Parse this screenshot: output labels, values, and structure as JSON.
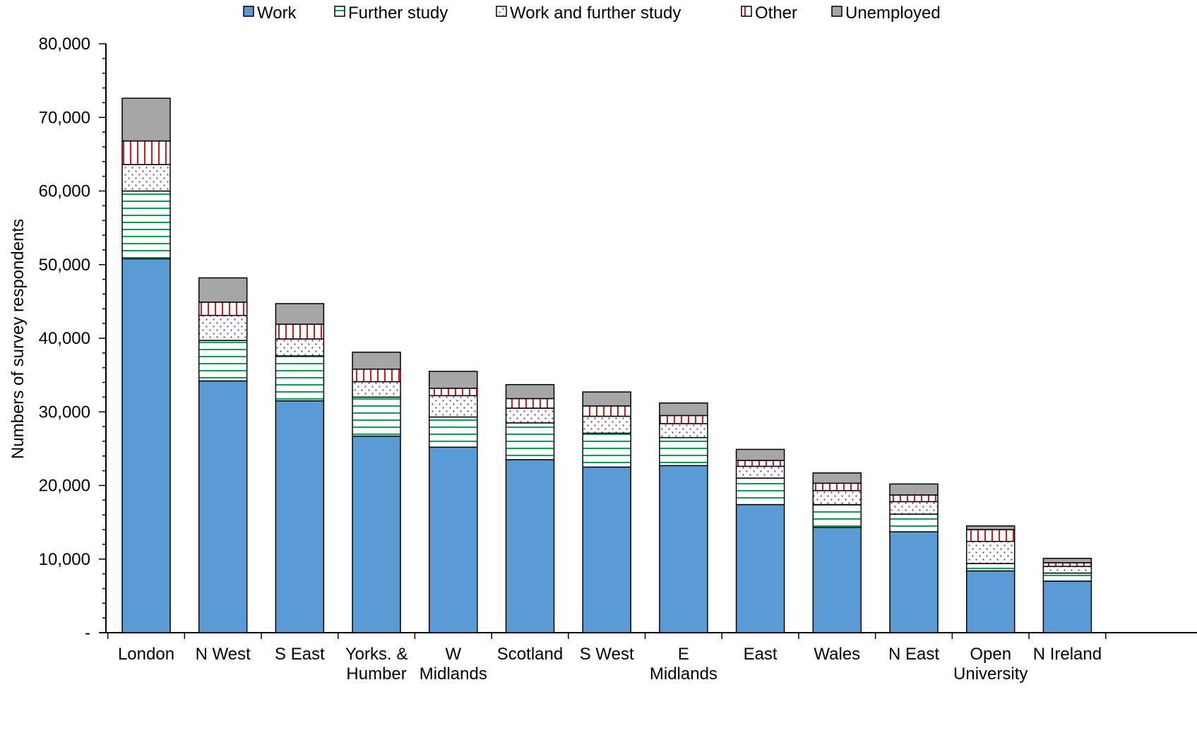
{
  "chart_data": {
    "type": "bar",
    "stacked": true,
    "title": "",
    "xlabel": "",
    "ylabel": "Numbers of survey respondents",
    "ylim": [
      0,
      80000
    ],
    "yticks": [
      0,
      10000,
      20000,
      30000,
      40000,
      50000,
      60000,
      70000,
      80000
    ],
    "ytick_labels": [
      "-",
      "10,000",
      "20,000",
      "30,000",
      "40,000",
      "50,000",
      "60,000",
      "70,000",
      "80,000"
    ],
    "grid": false,
    "legend_position": "top",
    "categories": [
      "London",
      "N West",
      "S East",
      "Yorks. & Humber",
      "W Midlands",
      "Scotland",
      "S West",
      "E Midlands",
      "East",
      "Wales",
      "N East",
      "Open University",
      "N Ireland"
    ],
    "category_label_lines": [
      [
        "London"
      ],
      [
        "N West"
      ],
      [
        "S East"
      ],
      [
        "Yorks. &",
        "Humber"
      ],
      [
        "W",
        "Midlands"
      ],
      [
        "Scotland"
      ],
      [
        "S West"
      ],
      [
        "E",
        "Midlands"
      ],
      [
        "East"
      ],
      [
        "Wales"
      ],
      [
        "N East"
      ],
      [
        "Open",
        "University"
      ],
      [
        "N Ireland"
      ]
    ],
    "series": [
      {
        "name": "Work",
        "pattern": "solid",
        "color": "#5b9bd5",
        "values": [
          50800,
          34200,
          31500,
          26700,
          25200,
          23500,
          22500,
          22700,
          17400,
          14300,
          13700,
          8400,
          7000
        ]
      },
      {
        "name": "Further study",
        "pattern": "horizontal-lines",
        "color": "#00a651",
        "values": [
          9200,
          5500,
          6100,
          5300,
          4100,
          5000,
          4600,
          3800,
          3600,
          3100,
          2400,
          1000,
          1100
        ]
      },
      {
        "name": "Work and further study",
        "pattern": "dots",
        "color": "#7030a0",
        "values": [
          3600,
          3400,
          2300,
          2100,
          2900,
          2000,
          2300,
          1900,
          1600,
          1900,
          1700,
          3000,
          900
        ]
      },
      {
        "name": "Other",
        "pattern": "vertical-lines",
        "color": "#e8141b",
        "values": [
          3200,
          1800,
          2000,
          1700,
          1000,
          1300,
          1400,
          1100,
          800,
          1000,
          900,
          1600,
          500
        ]
      },
      {
        "name": "Unemployed",
        "pattern": "solid",
        "color": "#a6a6a6",
        "values": [
          5800,
          3300,
          2800,
          2300,
          2300,
          1900,
          1900,
          1700,
          1500,
          1400,
          1500,
          500,
          600
        ]
      }
    ]
  }
}
